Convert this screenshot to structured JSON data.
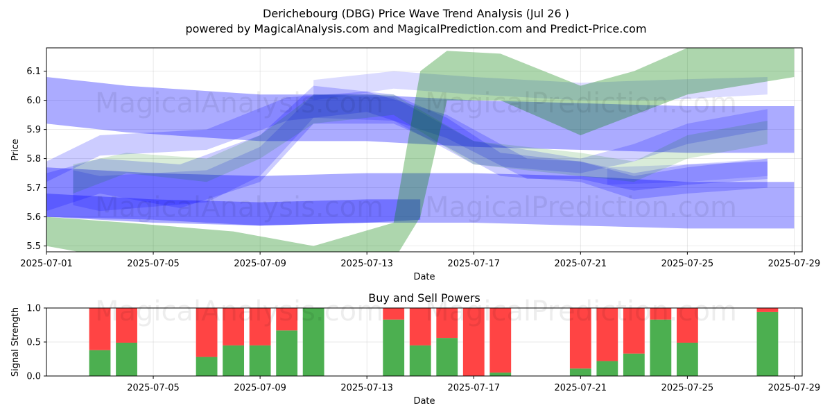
{
  "title": "Derichebourg (DBG) Price Wave Trend Analysis (Jul 26 )",
  "subtitle": "powered by MagicalAnalysis.com and MagicalPrediction.com and Predict-Price.com",
  "watermarks": [
    "MagicalAnalysis.com",
    "MagicalPrediction.com"
  ],
  "colors": {
    "blue_band": "#0000ff",
    "green_band": "#008000",
    "buy": "#4caf50",
    "sell": "#ff4444"
  },
  "chart_data": [
    {
      "type": "area",
      "title": "",
      "xlabel": "Date",
      "ylabel": "Price",
      "x_ticks": [
        "2025-07-01",
        "2025-07-05",
        "2025-07-09",
        "2025-07-13",
        "2025-07-17",
        "2025-07-21",
        "2025-07-25",
        "2025-07-29"
      ],
      "y_ticks": [
        "5.5",
        "5.6",
        "5.7",
        "5.8",
        "5.9",
        "6.0",
        "6.1"
      ],
      "xlim": [
        "2025-06-30.7",
        "2025-07-29.3"
      ],
      "ylim": [
        5.48,
        6.18
      ],
      "grid": true,
      "bands": [
        {
          "color": "blue",
          "opacity": 0.33,
          "points": [
            [
              "2025-07-01",
              5.92,
              6.08
            ],
            [
              "2025-07-04",
              5.89,
              6.05
            ],
            [
              "2025-07-09",
              5.86,
              6.02
            ],
            [
              "2025-07-13",
              5.86,
              6.02
            ],
            [
              "2025-07-17",
              5.84,
              6.0
            ],
            [
              "2025-07-21",
              5.83,
              5.99
            ],
            [
              "2025-07-25",
              5.82,
              5.98
            ],
            [
              "2025-07-29",
              5.82,
              5.98
            ]
          ]
        },
        {
          "color": "blue",
          "opacity": 0.33,
          "points": [
            [
              "2025-07-01",
              5.6,
              5.77
            ],
            [
              "2025-07-05",
              5.59,
              5.75
            ],
            [
              "2025-07-09",
              5.57,
              5.74
            ],
            [
              "2025-07-13",
              5.58,
              5.75
            ],
            [
              "2025-07-17",
              5.58,
              5.75
            ],
            [
              "2025-07-21",
              5.57,
              5.74
            ],
            [
              "2025-07-25",
              5.56,
              5.72
            ],
            [
              "2025-07-29",
              5.56,
              5.72
            ]
          ]
        },
        {
          "color": "blue",
          "opacity": 0.33,
          "points": [
            [
              "2025-07-01",
              5.6,
              5.68
            ],
            [
              "2025-07-05",
              5.58,
              5.66
            ],
            [
              "2025-07-09",
              5.57,
              5.65
            ],
            [
              "2025-07-13",
              5.58,
              5.66
            ],
            [
              "2025-07-15",
              5.59,
              5.66
            ]
          ]
        },
        {
          "color": "blue",
          "opacity": 0.2,
          "points": [
            [
              "2025-07-01",
              5.62,
              5.75
            ],
            [
              "2025-07-03",
              5.68,
              5.8
            ],
            [
              "2025-07-06",
              5.63,
              5.78
            ],
            [
              "2025-07-09",
              5.72,
              5.88
            ],
            [
              "2025-07-11",
              5.92,
              6.05
            ],
            [
              "2025-07-14",
              5.92,
              6.02
            ],
            [
              "2025-07-16",
              5.84,
              5.94
            ],
            [
              "2025-07-18",
              5.74,
              5.82
            ],
            [
              "2025-07-21",
              5.72,
              5.79
            ],
            [
              "2025-07-23",
              5.66,
              5.74
            ],
            [
              "2025-07-25",
              5.68,
              5.77
            ],
            [
              "2025-07-28",
              5.7,
              5.8
            ]
          ]
        },
        {
          "color": "blue",
          "opacity": 0.2,
          "points": [
            [
              "2025-07-01",
              5.72,
              5.79
            ],
            [
              "2025-07-03",
              5.81,
              5.88
            ],
            [
              "2025-07-07",
              5.83,
              5.9
            ],
            [
              "2025-07-10",
              5.93,
              6.01
            ],
            [
              "2025-07-13",
              5.96,
              6.03
            ],
            [
              "2025-07-16",
              5.87,
              5.95
            ],
            [
              "2025-07-19",
              5.73,
              5.8
            ],
            [
              "2025-07-21",
              5.73,
              5.79
            ],
            [
              "2025-07-23",
              5.69,
              5.75
            ],
            [
              "2025-07-25",
              5.71,
              5.78
            ],
            [
              "2025-07-28",
              5.73,
              5.79
            ]
          ]
        },
        {
          "color": "blue",
          "opacity": 0.18,
          "points": [
            [
              "2025-07-02",
              5.64,
              5.76
            ],
            [
              "2025-07-03",
              5.62,
              5.74
            ],
            [
              "2025-07-07",
              5.65,
              5.76
            ],
            [
              "2025-07-09",
              5.74,
              5.84
            ],
            [
              "2025-07-11",
              5.94,
              6.02
            ],
            [
              "2025-07-14",
              5.93,
              6.01
            ],
            [
              "2025-07-17",
              5.78,
              5.86
            ],
            [
              "2025-07-21",
              5.75,
              5.8
            ],
            [
              "2025-07-23",
              5.79,
              5.85
            ],
            [
              "2025-07-25",
              5.85,
              5.92
            ],
            [
              "2025-07-28",
              5.9,
              5.97
            ]
          ]
        },
        {
          "color": "blue",
          "opacity": 0.14,
          "points": [
            [
              "2025-07-11",
              6.0,
              6.07
            ],
            [
              "2025-07-14",
              6.04,
              6.1
            ],
            [
              "2025-07-17",
              6.02,
              6.08
            ],
            [
              "2025-07-21",
              6.0,
              6.06
            ],
            [
              "2025-07-24",
              6.0,
              6.07
            ],
            [
              "2025-07-28",
              6.02,
              6.08
            ]
          ]
        },
        {
          "color": "blue",
          "opacity": 0.14,
          "points": [
            [
              "2025-07-22",
              5.71,
              5.77
            ],
            [
              "2025-07-25",
              5.72,
              5.78
            ],
            [
              "2025-07-28",
              5.74,
              5.8
            ]
          ]
        },
        {
          "color": "green",
          "opacity": 0.32,
          "points": [
            [
              "2025-07-01",
              5.5,
              5.6
            ],
            [
              "2025-07-04",
              5.45,
              5.58
            ],
            [
              "2025-07-08",
              5.4,
              5.55
            ],
            [
              "2025-07-11",
              5.35,
              5.5
            ],
            [
              "2025-07-14",
              5.45,
              5.58
            ],
            [
              "2025-07-15",
              5.6,
              6.1
            ],
            [
              "2025-07-16",
              6.0,
              6.17
            ],
            [
              "2025-07-18",
              6.0,
              6.16
            ],
            [
              "2025-07-21",
              5.88,
              6.05
            ],
            [
              "2025-07-23",
              5.95,
              6.1
            ],
            [
              "2025-07-25",
              6.02,
              6.18
            ],
            [
              "2025-07-29",
              6.08,
              6.25
            ]
          ]
        },
        {
          "color": "green",
          "opacity": 0.15,
          "points": [
            [
              "2025-07-02",
              5.68,
              5.78
            ],
            [
              "2025-07-04",
              5.75,
              5.82
            ],
            [
              "2025-07-07",
              5.72,
              5.8
            ],
            [
              "2025-07-09",
              5.8,
              5.88
            ],
            [
              "2025-07-11",
              5.92,
              6.02
            ],
            [
              "2025-07-14",
              5.95,
              6.02
            ],
            [
              "2025-07-17",
              5.78,
              5.86
            ],
            [
              "2025-07-21",
              5.74,
              5.82
            ],
            [
              "2025-07-23",
              5.72,
              5.79
            ],
            [
              "2025-07-25",
              5.8,
              5.88
            ],
            [
              "2025-07-28",
              5.85,
              5.93
            ]
          ]
        }
      ]
    },
    {
      "type": "bar",
      "title": "Buy and Sell Powers",
      "xlabel": "Date",
      "ylabel": "Signal Strength",
      "x_ticks": [
        "2025-07-05",
        "2025-07-09",
        "2025-07-13",
        "2025-07-17",
        "2025-07-21",
        "2025-07-25",
        "2025-07-29"
      ],
      "y_ticks": [
        "0.0",
        "0.5",
        "1.0"
      ],
      "ylim": [
        0,
        1
      ],
      "grid": true,
      "stacked": true,
      "categories": [
        "2025-07-03",
        "2025-07-04",
        "2025-07-07",
        "2025-07-08",
        "2025-07-09",
        "2025-07-10",
        "2025-07-11",
        "2025-07-14",
        "2025-07-15",
        "2025-07-16",
        "2025-07-17",
        "2025-07-18",
        "2025-07-21",
        "2025-07-22",
        "2025-07-23",
        "2025-07-24",
        "2025-07-25",
        "2025-07-28"
      ],
      "series": [
        {
          "name": "",
          "values": [
            0.38,
            0.49,
            0.28,
            0.45,
            0.45,
            0.67,
            1.0,
            0.83,
            0.45,
            0.56,
            0.0,
            0.05,
            0.11,
            0.22,
            0.33,
            0.83,
            0.49,
            0.94
          ]
        },
        {
          "name": "",
          "values": [
            0.62,
            0.51,
            0.72,
            0.55,
            0.55,
            0.33,
            0.0,
            0.17,
            0.55,
            0.44,
            1.0,
            0.95,
            0.89,
            0.78,
            0.67,
            0.17,
            0.51,
            0.06
          ]
        }
      ]
    }
  ]
}
